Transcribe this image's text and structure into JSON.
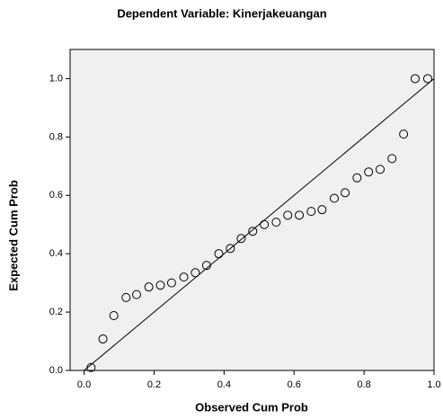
{
  "chart_data": {
    "type": "scatter",
    "title": "Dependent Variable: Kinerjakeuangan",
    "x_label": "Observed Cum Prob",
    "y_label": "Expected Cum Prob",
    "x": [
      0.02,
      0.054,
      0.085,
      0.12,
      0.15,
      0.185,
      0.218,
      0.25,
      0.285,
      0.318,
      0.35,
      0.385,
      0.418,
      0.449,
      0.482,
      0.515,
      0.549,
      0.582,
      0.615,
      0.649,
      0.68,
      0.715,
      0.746,
      0.78,
      0.813,
      0.846,
      0.88,
      0.913,
      0.946,
      0.982
    ],
    "values": [
      0.01,
      0.108,
      0.188,
      0.25,
      0.26,
      0.286,
      0.292,
      0.3,
      0.32,
      0.335,
      0.36,
      0.4,
      0.418,
      0.452,
      0.477,
      0.5,
      0.508,
      0.532,
      0.532,
      0.545,
      0.551,
      0.59,
      0.609,
      0.66,
      0.68,
      0.689,
      0.726,
      0.81,
      1.0,
      1.0
    ],
    "reference_line": {
      "x": [
        0,
        1
      ],
      "y": [
        0,
        1
      ]
    },
    "color": "#000000",
    "plot_background": "#f0f0f0",
    "xlim": [
      -0.04,
      1.0
    ],
    "ylim": [
      0,
      1.1
    ],
    "xticks": [
      {
        "value": 0,
        "label": "0.0"
      },
      0.2,
      0.4,
      0.6,
      0.8,
      {
        "value": 1,
        "label": "1.0"
      }
    ],
    "yticks": [
      {
        "value": 0,
        "label": "0.0"
      },
      0.2,
      0.4,
      0.6,
      0.8,
      {
        "value": 1,
        "label": "1.0"
      }
    ]
  }
}
